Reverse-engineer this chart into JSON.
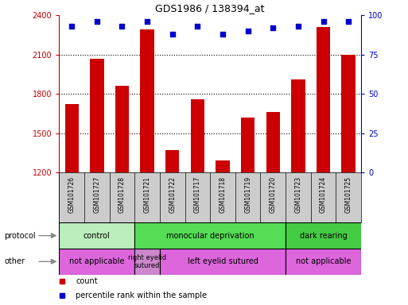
{
  "title": "GDS1986 / 138394_at",
  "samples": [
    "GSM101726",
    "GSM101727",
    "GSM101728",
    "GSM101721",
    "GSM101722",
    "GSM101717",
    "GSM101718",
    "GSM101719",
    "GSM101720",
    "GSM101723",
    "GSM101724",
    "GSM101725"
  ],
  "counts": [
    1720,
    2070,
    1860,
    2290,
    1370,
    1760,
    1290,
    1620,
    1660,
    1910,
    2310,
    2095
  ],
  "percentiles": [
    93,
    96,
    93,
    96,
    88,
    93,
    88,
    90,
    92,
    93,
    96,
    96
  ],
  "ylim_left": [
    1200,
    2400
  ],
  "ylim_right": [
    0,
    100
  ],
  "yticks_left": [
    1200,
    1500,
    1800,
    2100,
    2400
  ],
  "yticks_right": [
    0,
    25,
    50,
    75,
    100
  ],
  "bar_color": "#cc0000",
  "dot_color": "#0000cc",
  "grid_lines": [
    1500,
    1800,
    2100
  ],
  "protocol_groups": [
    {
      "label": "control",
      "start": 0,
      "end": 3,
      "color": "#bbeebb"
    },
    {
      "label": "monocular deprivation",
      "start": 3,
      "end": 9,
      "color": "#55dd55"
    },
    {
      "label": "dark rearing",
      "start": 9,
      "end": 12,
      "color": "#44cc44"
    }
  ],
  "other_groups": [
    {
      "label": "not applicable",
      "start": 0,
      "end": 3,
      "color": "#dd66dd"
    },
    {
      "label": "right eyelid\nsutured",
      "start": 3,
      "end": 4,
      "color": "#cc88cc"
    },
    {
      "label": "left eyelid sutured",
      "start": 4,
      "end": 9,
      "color": "#dd66dd"
    },
    {
      "label": "not applicable",
      "start": 9,
      "end": 12,
      "color": "#dd66dd"
    }
  ],
  "legend_items": [
    {
      "label": "count",
      "color": "#cc0000"
    },
    {
      "label": "percentile rank within the sample",
      "color": "#0000cc"
    }
  ],
  "bar_width": 0.55,
  "label_row_color": "#cccccc",
  "fig_bg": "#ffffff"
}
